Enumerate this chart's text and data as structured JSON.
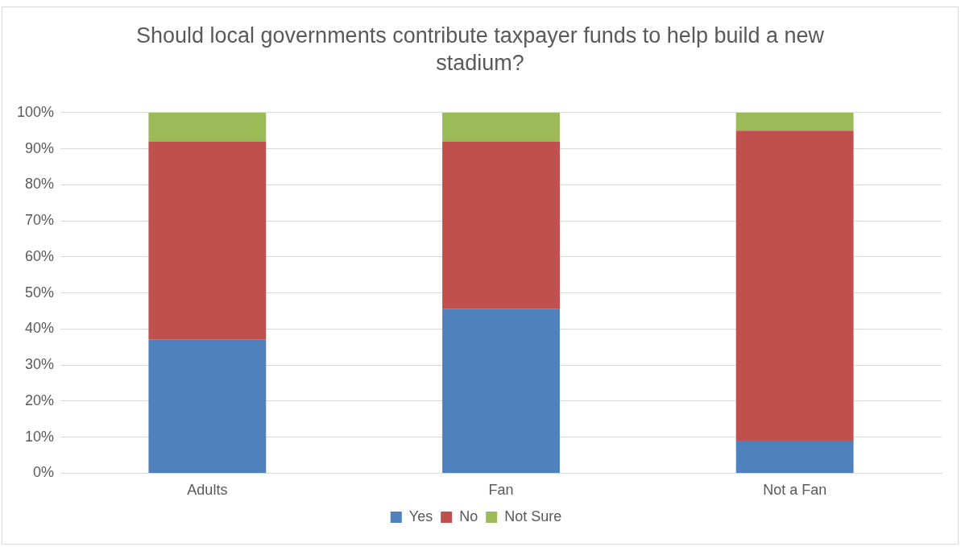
{
  "chart_data": {
    "type": "bar",
    "title": "Should local governments contribute taxpayer funds to help build a new stadium?",
    "categories": [
      "Adults",
      "Fan",
      "Not a Fan"
    ],
    "stacked": true,
    "series": [
      {
        "name": "Yes",
        "color": "#4f81bd",
        "values": [
          37,
          45.5,
          9
        ]
      },
      {
        "name": "No",
        "color": "#c0504d",
        "values": [
          55,
          46.5,
          86
        ]
      },
      {
        "name": "Not Sure",
        "color": "#9bbb59",
        "values": [
          8,
          8,
          5
        ]
      }
    ],
    "ylim": [
      0,
      100
    ],
    "yticks": [
      {
        "value": 0,
        "label": "0%"
      },
      {
        "value": 10,
        "label": "10%"
      },
      {
        "value": 20,
        "label": "20%"
      },
      {
        "value": 30,
        "label": "30%"
      },
      {
        "value": 40,
        "label": "40%"
      },
      {
        "value": 50,
        "label": "50%"
      },
      {
        "value": 60,
        "label": "60%"
      },
      {
        "value": 70,
        "label": "70%"
      },
      {
        "value": 80,
        "label": "80%"
      },
      {
        "value": 90,
        "label": "90%"
      },
      {
        "value": 100,
        "label": "100%"
      }
    ],
    "grid": "y",
    "legend": "bottom"
  }
}
